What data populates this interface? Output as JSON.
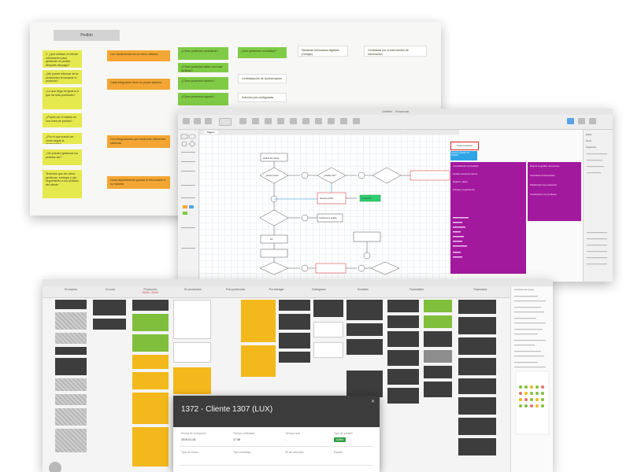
{
  "board": {
    "header": "Pedido",
    "notes": [
      {
        "id": "n1",
        "text": "1. ¿qué utilidad, el cliente información para gestionar mi pedido después del pago?"
      },
      {
        "id": "n2",
        "text": "¿Me puede informar de la producción al comprar el producto?"
      },
      {
        "id": "n3",
        "text": "¿Lo que llega es igual a lo que ha sido producido?"
      },
      {
        "id": "n4",
        "text": "¿Puedo ver el estado en una línea de pedido?"
      },
      {
        "id": "n5",
        "text": "¿Por el que puedo ver cómo seguir la producción?"
      },
      {
        "id": "n6",
        "text": "¿Se pueden gestionar los pedidos así?"
      },
      {
        "id": "n7",
        "text": "Tenemos que ver cómo gestionar, entregar y dar seguimiento a los pedidos del cliente"
      },
      {
        "id": "o1",
        "text": "Los mantenemos en un único sistema"
      },
      {
        "id": "o2",
        "text": "Cada integración tiene su propio sistema"
      },
      {
        "id": "o3",
        "text": "Con integraciones que involucran diferentes sistemas"
      },
      {
        "id": "o4",
        "text": "Cada departamento guarda la información a su manera"
      },
      {
        "id": "g1",
        "text": "¿Cómo podemos centralizar?"
      },
      {
        "id": "g2",
        "text": "¿Cómo podemos saber con más facilidad?"
      },
      {
        "id": "g3",
        "text": "¿Cómo podemos hacerlo?"
      },
      {
        "id": "g4",
        "text": "¿Cómo podemos lograrlo?"
      },
      {
        "id": "g5",
        "text": "¿Qué queremos centralizar?"
      },
      {
        "id": "w1",
        "text": "Mediante formularios digitales (Google)"
      },
      {
        "id": "w2",
        "text": "Centralización de la información"
      },
      {
        "id": "w3",
        "text": "Solución pre-configurada"
      },
      {
        "id": "w4",
        "text": "Centralizar por el intercambio de información"
      }
    ]
  },
  "flow_app": {
    "title": "Untitled - Flowchart",
    "tab": "Page-1",
    "panel_title": "Implementación",
    "panel_box_title": "Proceso Gestión de Pedidos",
    "panel_col1": [
      "Centralización de Pedidos",
      "Gestión actual del cliente",
      "Registro: datos",
      "Entrega y seguimiento"
    ],
    "panel_col2": [
      "Mejorar la gestión del proceso",
      "Centralizar la información",
      "Planificación de producción",
      "Coordinación con el cliente"
    ],
    "nodes": [
      "Pedido del cliente",
      "¿Existe stock?",
      "¿Pedido OK?",
      "Revisar pedido",
      "Producción",
      "Confirmar el pedido",
      "Fin"
    ],
    "right_panel": [
      "Estilo",
      "Texto",
      "Organizar"
    ]
  },
  "planner": {
    "columns": [
      {
        "name": "En espera",
        "sub": ""
      },
      {
        "name": "En cola",
        "sub": ""
      },
      {
        "name": "Producción",
        "sub": "00:00 - 00:00"
      },
      {
        "name": "En producción",
        "sub": ""
      },
      {
        "name": "Post-producción",
        "sub": ""
      },
      {
        "name": "Por entregar",
        "sub": ""
      },
      {
        "name": "Entregados",
        "sub": ""
      },
      {
        "name": "Enviados",
        "sub": ""
      },
      {
        "name": "Facturables",
        "sub": ""
      },
      {
        "name": "Facturados",
        "sub": ""
      }
    ],
    "side_title": "Actividad del equipo",
    "modal": {
      "title": "1372 - Cliente 1307 (LUX)",
      "fields": [
        {
          "label": "Fecha de recepción",
          "value": "2019-01-28"
        },
        {
          "label": "Tiempo estimado",
          "value": "17:48"
        },
        {
          "label": "Tiempo real",
          "value": "-"
        },
        {
          "label": "Tipo de pedido",
          "value": ""
        },
        {
          "label": "Tipo de envío",
          "value": ""
        },
        {
          "label": "Tipo embalaje",
          "value": ""
        },
        {
          "label": "Nº de artículos",
          "value": ""
        },
        {
          "label": "Estado",
          "value": ""
        }
      ],
      "badge": "Activo"
    }
  },
  "colors": {
    "yellow": "#e6e94d",
    "orange": "#f3a633",
    "green": "#7fcb45",
    "magenta": "#a3199e",
    "dark": "#3d3d3d",
    "amber": "#f3b81b"
  }
}
